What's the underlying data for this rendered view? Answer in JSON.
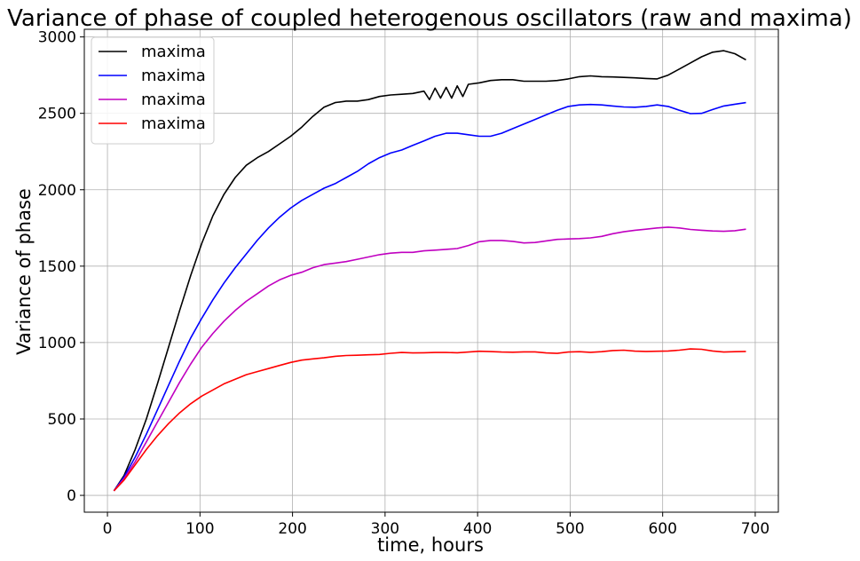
{
  "chart_data": {
    "type": "line",
    "title": "Variance of phase of coupled heterogenous oscillators (raw and maxima)",
    "xlabel": "time, hours",
    "ylabel": "Variance of phase",
    "xlim": [
      -25,
      725
    ],
    "ylim": [
      -110,
      3050
    ],
    "xticks": [
      0,
      100,
      200,
      300,
      400,
      500,
      600,
      700
    ],
    "yticks": [
      0,
      500,
      1000,
      1500,
      2000,
      2500,
      3000
    ],
    "grid": true,
    "legend": "top-left",
    "series": [
      {
        "name": "maxima",
        "color": "#000000",
        "x": [
          7,
          18,
          30,
          42,
          54,
          66,
          78,
          90,
          102,
          114,
          126,
          138,
          150,
          162,
          174,
          186,
          198,
          210,
          222,
          234,
          246,
          258,
          270,
          282,
          294,
          306,
          318,
          330,
          342,
          348,
          354,
          360,
          366,
          372,
          378,
          384,
          390,
          402,
          414,
          426,
          438,
          450,
          462,
          474,
          486,
          498,
          510,
          522,
          534,
          546,
          558,
          570,
          582,
          594,
          606,
          618,
          630,
          642,
          654,
          666,
          678,
          690
        ],
        "y": [
          30,
          130,
          300,
          500,
          730,
          970,
          1210,
          1440,
          1650,
          1830,
          1970,
          2080,
          2160,
          2210,
          2250,
          2300,
          2350,
          2410,
          2480,
          2540,
          2570,
          2580,
          2580,
          2590,
          2610,
          2620,
          2625,
          2630,
          2645,
          2590,
          2665,
          2600,
          2670,
          2600,
          2680,
          2610,
          2690,
          2700,
          2715,
          2720,
          2720,
          2710,
          2710,
          2710,
          2715,
          2725,
          2740,
          2745,
          2740,
          2738,
          2735,
          2732,
          2728,
          2725,
          2750,
          2790,
          2830,
          2870,
          2900,
          2910,
          2890,
          2850
        ]
      },
      {
        "name": "maxima",
        "color": "#0000ff",
        "x": [
          7,
          18,
          30,
          42,
          54,
          66,
          78,
          90,
          102,
          114,
          126,
          138,
          150,
          162,
          174,
          186,
          198,
          210,
          222,
          234,
          246,
          258,
          270,
          282,
          294,
          306,
          318,
          330,
          342,
          354,
          366,
          378,
          390,
          402,
          414,
          426,
          438,
          450,
          462,
          474,
          486,
          498,
          510,
          522,
          534,
          546,
          558,
          570,
          582,
          594,
          606,
          618,
          630,
          642,
          654,
          666,
          678,
          690
        ],
        "y": [
          30,
          120,
          250,
          400,
          560,
          720,
          880,
          1030,
          1160,
          1280,
          1390,
          1490,
          1580,
          1670,
          1750,
          1820,
          1880,
          1930,
          1970,
          2010,
          2040,
          2080,
          2120,
          2170,
          2210,
          2240,
          2260,
          2290,
          2320,
          2350,
          2370,
          2370,
          2360,
          2350,
          2350,
          2370,
          2400,
          2430,
          2460,
          2490,
          2520,
          2545,
          2555,
          2558,
          2555,
          2548,
          2542,
          2540,
          2545,
          2555,
          2545,
          2520,
          2498,
          2500,
          2525,
          2548,
          2560,
          2570
        ]
      },
      {
        "name": "maxima",
        "color": "#c000c0",
        "x": [
          7,
          18,
          30,
          42,
          54,
          66,
          78,
          90,
          102,
          114,
          126,
          138,
          150,
          162,
          174,
          186,
          198,
          210,
          222,
          234,
          246,
          258,
          270,
          282,
          294,
          306,
          318,
          330,
          342,
          354,
          366,
          378,
          390,
          402,
          414,
          426,
          438,
          450,
          462,
          474,
          486,
          498,
          510,
          522,
          534,
          546,
          558,
          570,
          582,
          594,
          606,
          618,
          630,
          642,
          654,
          666,
          678,
          690
        ],
        "y": [
          30,
          110,
          220,
          350,
          480,
          610,
          740,
          860,
          970,
          1060,
          1140,
          1210,
          1270,
          1320,
          1370,
          1410,
          1440,
          1460,
          1490,
          1510,
          1520,
          1530,
          1545,
          1560,
          1575,
          1585,
          1590,
          1590,
          1600,
          1605,
          1610,
          1615,
          1635,
          1660,
          1668,
          1668,
          1662,
          1652,
          1655,
          1665,
          1675,
          1678,
          1680,
          1685,
          1695,
          1712,
          1725,
          1735,
          1742,
          1750,
          1755,
          1750,
          1740,
          1735,
          1730,
          1728,
          1732,
          1742
        ]
      },
      {
        "name": "maxima",
        "color": "#ff0000",
        "x": [
          7,
          18,
          30,
          42,
          54,
          66,
          78,
          90,
          102,
          114,
          126,
          138,
          150,
          162,
          174,
          186,
          198,
          210,
          222,
          234,
          246,
          258,
          270,
          282,
          294,
          306,
          318,
          330,
          342,
          354,
          366,
          378,
          390,
          402,
          414,
          426,
          438,
          450,
          462,
          474,
          486,
          498,
          510,
          522,
          534,
          546,
          558,
          570,
          582,
          594,
          606,
          618,
          630,
          642,
          654,
          666,
          678,
          690
        ],
        "y": [
          30,
          100,
          200,
          300,
          390,
          470,
          540,
          600,
          650,
          690,
          730,
          760,
          790,
          810,
          830,
          850,
          870,
          885,
          893,
          900,
          910,
          915,
          917,
          920,
          922,
          930,
          935,
          932,
          933,
          935,
          935,
          933,
          938,
          943,
          941,
          938,
          937,
          939,
          939,
          932,
          929,
          938,
          940,
          936,
          940,
          948,
          950,
          944,
          942,
          943,
          945,
          950,
          958,
          956,
          945,
          938,
          940,
          942
        ]
      }
    ]
  }
}
